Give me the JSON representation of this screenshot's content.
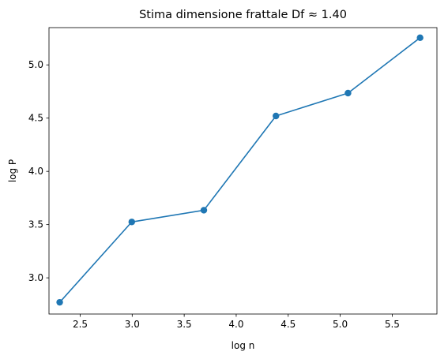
{
  "chart_data": {
    "type": "line",
    "title": "Stima dimensione frattale Df ≈ 1.40",
    "xlabel": "log n",
    "ylabel": "log P",
    "xlim": [
      2.2,
      5.93
    ],
    "ylim": [
      2.66,
      5.35
    ],
    "grid": false,
    "legend": "none",
    "x_ticks": [
      2.5,
      3.0,
      3.5,
      4.0,
      4.5,
      5.0,
      5.5
    ],
    "x_tick_labels": [
      "2.5",
      "3.0",
      "3.5",
      "4.0",
      "4.5",
      "5.0",
      "5.5"
    ],
    "y_ticks": [
      3.0,
      3.5,
      4.0,
      4.5,
      5.0
    ],
    "y_tick_labels": [
      "3.0",
      "3.5",
      "4.0",
      "4.5",
      "5.0"
    ],
    "series": [
      {
        "x": [
          2.303,
          2.996,
          3.689,
          4.382,
          5.075,
          5.768
        ],
        "y": [
          2.77,
          3.525,
          3.635,
          4.52,
          4.735,
          5.255
        ],
        "marker": "circle",
        "color": "#1f77b4"
      }
    ]
  }
}
